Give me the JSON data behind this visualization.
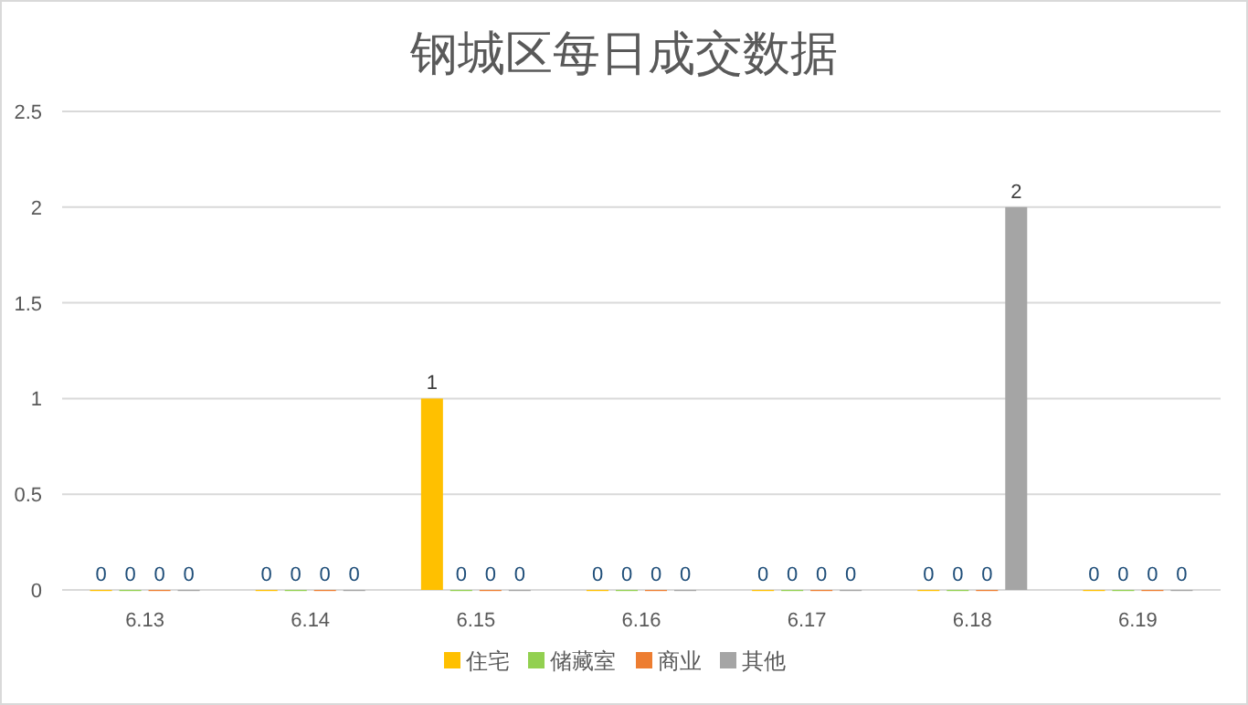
{
  "chart_data": {
    "type": "bar",
    "title": "钢城区每日成交数据",
    "categories": [
      "6.13",
      "6.14",
      "6.15",
      "6.16",
      "6.17",
      "6.18",
      "6.19"
    ],
    "series": [
      {
        "name": "住宅",
        "color": "#ffc000",
        "values": [
          0,
          0,
          1,
          0,
          0,
          0,
          0
        ]
      },
      {
        "name": "储藏室",
        "color": "#92d050",
        "values": [
          0,
          0,
          0,
          0,
          0,
          0,
          0
        ]
      },
      {
        "name": "商业",
        "color": "#ed7d31",
        "values": [
          0,
          0,
          0,
          0,
          0,
          0,
          0
        ]
      },
      {
        "name": "其他",
        "color": "#a5a5a5",
        "values": [
          0,
          0,
          0,
          0,
          0,
          2,
          0
        ]
      }
    ],
    "ylim": [
      0,
      2.5
    ],
    "yticks": [
      0,
      0.5,
      1,
      1.5,
      2,
      2.5
    ],
    "grid": "y",
    "legend": "bottom",
    "data_labels": true
  }
}
